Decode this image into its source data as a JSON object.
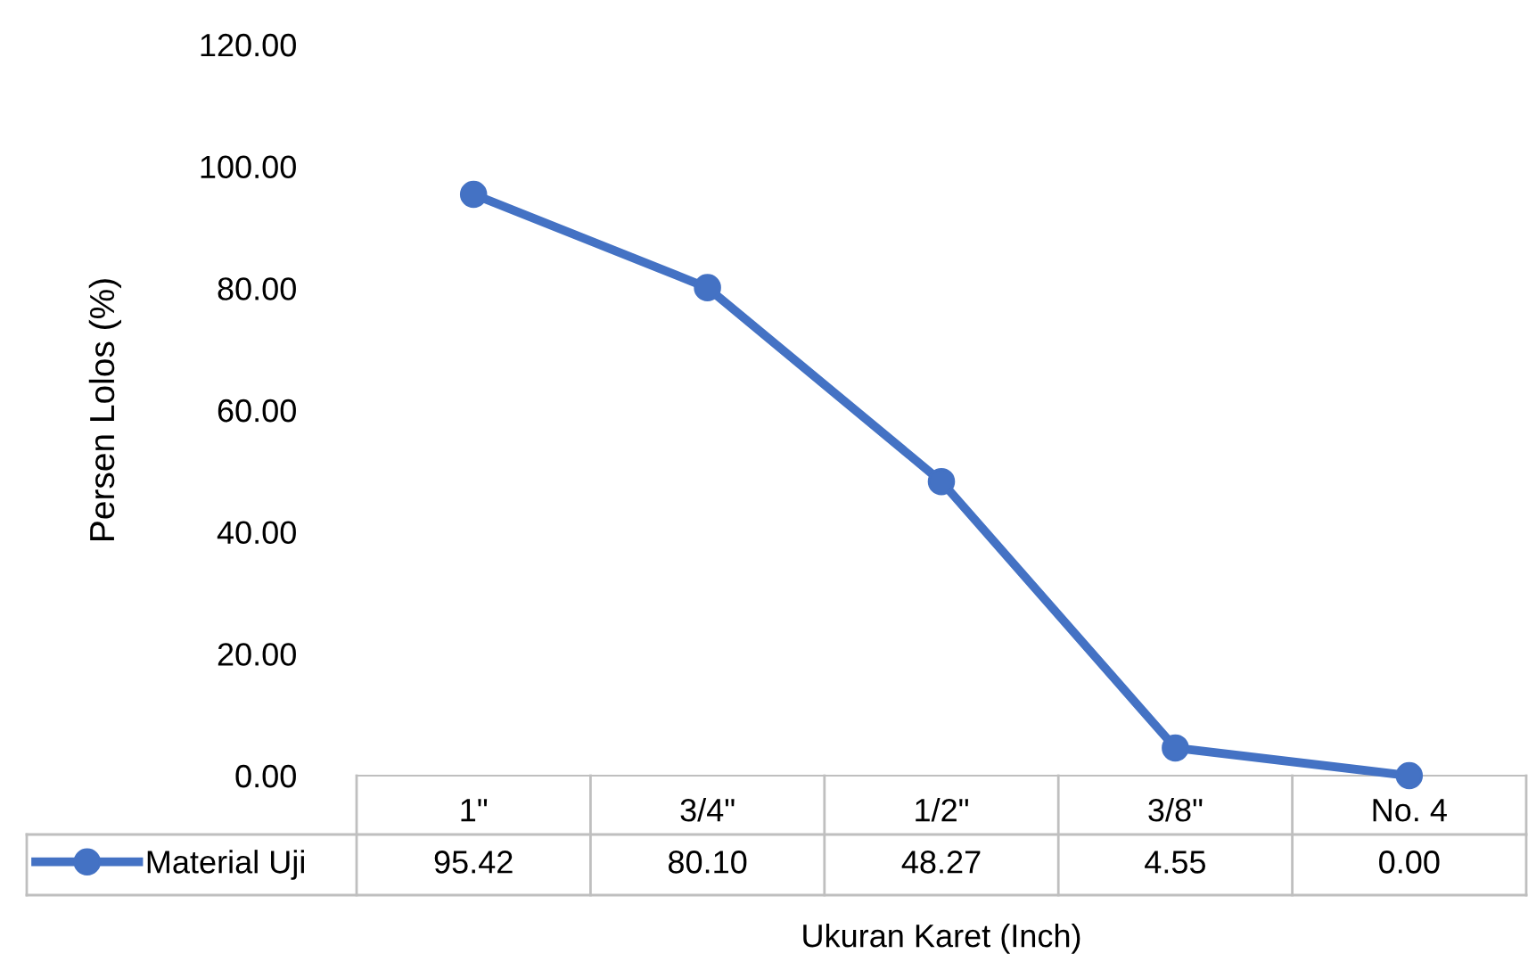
{
  "chart_data": {
    "type": "line",
    "xlabel": "Ukuran Karet (Inch)",
    "ylabel": "Persen Lolos (%)",
    "categories": [
      "1\"",
      "3/4\"",
      "1/2\"",
      "3/8\"",
      "No. 4"
    ],
    "series": [
      {
        "name": "Material Uji",
        "color": "#4472c4",
        "values": [
          95.42,
          80.1,
          48.27,
          4.55,
          0.0
        ],
        "value_labels": [
          "95.42",
          "80.10",
          "48.27",
          "4.55",
          "0.00"
        ]
      }
    ],
    "ylim": [
      0,
      120
    ],
    "yticks": [
      {
        "value": 0,
        "label": "0.00"
      },
      {
        "value": 20,
        "label": "20.00"
      },
      {
        "value": 40,
        "label": "40.00"
      },
      {
        "value": 60,
        "label": "60.00"
      },
      {
        "value": 80,
        "label": "80.00"
      },
      {
        "value": 100,
        "label": "100.00"
      },
      {
        "value": 120,
        "label": "120.00"
      }
    ],
    "grid": false,
    "legend": "bottom",
    "marker": "circle",
    "line_style": "solid"
  }
}
